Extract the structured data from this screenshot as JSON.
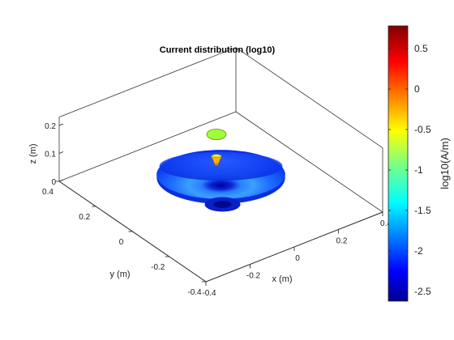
{
  "chart_data": {
    "type": "surface3d",
    "title": "Current distribution (log10)",
    "axes": {
      "x": {
        "label": "x (m)",
        "range": [
          -0.4,
          0.4
        ],
        "ticks": [
          -0.2,
          0,
          0.2
        ],
        "tick_labels": [
          "-0.2",
          "0",
          "0.2"
        ],
        "end_labels": [
          "-0.4",
          "0.4"
        ]
      },
      "y": {
        "label": "y (m)",
        "range": [
          -0.4,
          0.4
        ],
        "ticks": [
          0.2,
          0,
          -0.2
        ],
        "tick_labels": [
          "0.2",
          "0",
          "-0.2"
        ],
        "end_labels": [
          "0.4",
          "-0.4"
        ]
      },
      "z": {
        "label": "z (m)",
        "range": [
          0,
          0.2
        ],
        "ticks": [
          0,
          0.1,
          0.2
        ],
        "tick_labels": [
          "0",
          "0.1",
          "0.2"
        ]
      }
    },
    "grid": false,
    "box": true,
    "colormap": "jet",
    "colorbar": {
      "label": "log10(A/m)",
      "range": [
        -2.62,
        0.78
      ],
      "ticks": [
        0.5,
        0,
        -0.5,
        -1,
        -1.5,
        -2,
        -2.5
      ],
      "tick_labels": [
        "0.5",
        "0",
        "-0.5",
        "-1",
        "-1.5",
        "-2",
        "-2.5"
      ],
      "placement": "right"
    },
    "objects": [
      {
        "name": "reflector-dish",
        "shape": "paraboloid",
        "radius": 0.3,
        "depth": 0.05,
        "value_range": [
          -2.6,
          -1.3
        ]
      },
      {
        "name": "feed-disc",
        "shape": "disc",
        "radius": 0.035,
        "z": 0.16,
        "value": -0.6
      },
      {
        "name": "feed-cone",
        "shape": "cone",
        "radius": 0.018,
        "z": 0.11,
        "value": -0.3
      }
    ]
  }
}
